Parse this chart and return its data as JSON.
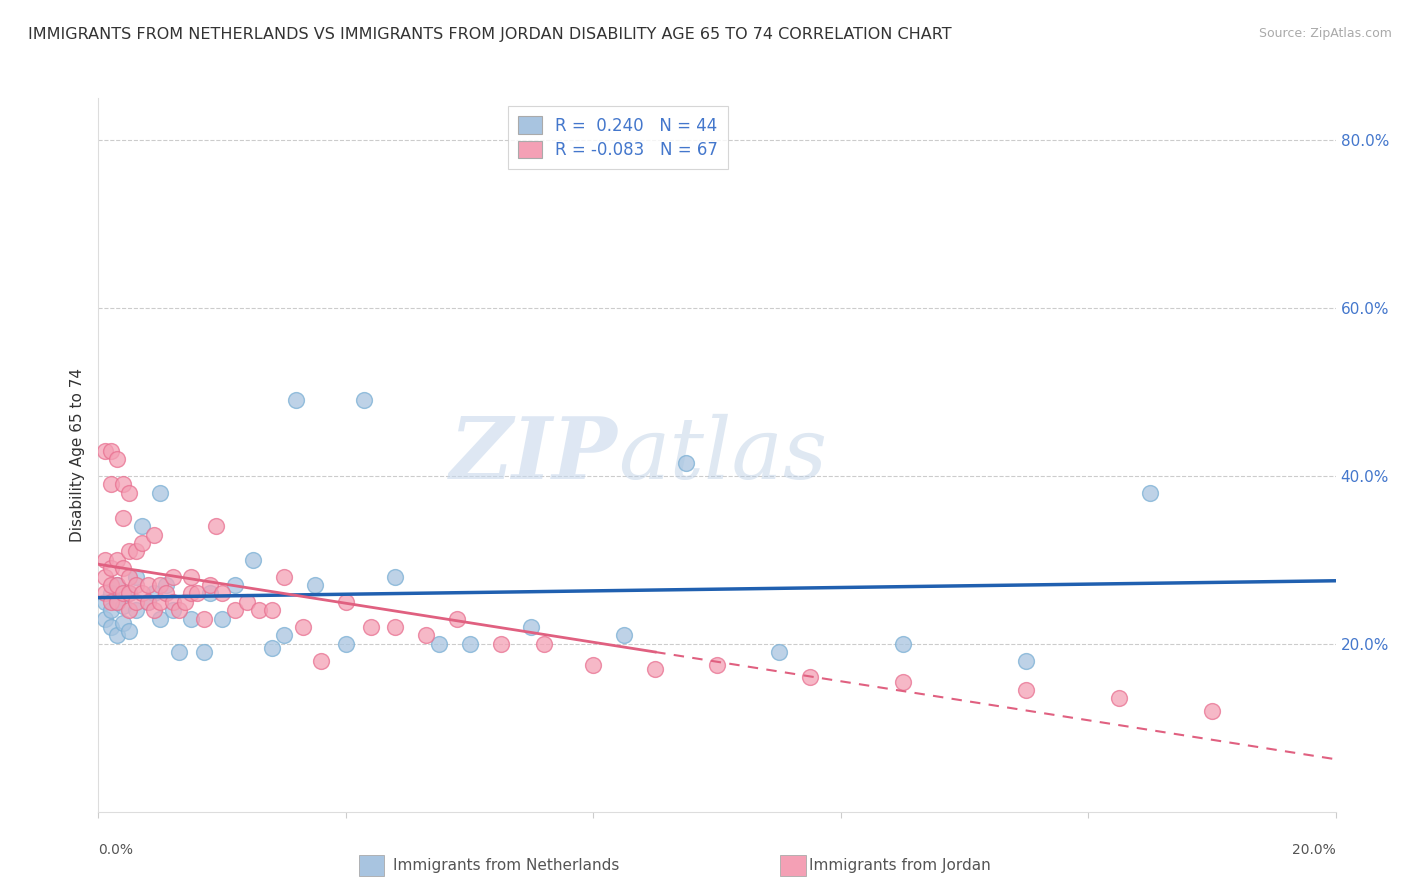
{
  "title": "IMMIGRANTS FROM NETHERLANDS VS IMMIGRANTS FROM JORDAN DISABILITY AGE 65 TO 74 CORRELATION CHART",
  "source": "Source: ZipAtlas.com",
  "ylabel": "Disability Age 65 to 74",
  "xmin": 0.0,
  "xmax": 0.2,
  "ymin": 0.0,
  "ymax": 0.85,
  "netherlands_color": "#a8c4e0",
  "netherlands_edge": "#7aafd4",
  "jordan_color": "#f4a0b5",
  "jordan_edge": "#e87090",
  "nl_line_color": "#2060b0",
  "jo_line_color": "#e06080",
  "netherlands_R": 0.24,
  "netherlands_N": 44,
  "jordan_R": -0.083,
  "jordan_N": 67,
  "legend_label_netherlands": "Immigrants from Netherlands",
  "legend_label_jordan": "Immigrants from Jordan",
  "watermark_zip": "ZIP",
  "watermark_atlas": "atlas",
  "ytick_vals": [
    0.2,
    0.4,
    0.6,
    0.8
  ],
  "ytick_labels": [
    "20.0%",
    "40.0%",
    "60.0%",
    "80.0%"
  ],
  "netherlands_x": [
    0.001,
    0.001,
    0.002,
    0.002,
    0.002,
    0.003,
    0.003,
    0.003,
    0.004,
    0.004,
    0.005,
    0.005,
    0.006,
    0.006,
    0.007,
    0.008,
    0.009,
    0.01,
    0.01,
    0.011,
    0.012,
    0.013,
    0.015,
    0.017,
    0.018,
    0.02,
    0.022,
    0.025,
    0.028,
    0.03,
    0.032,
    0.035,
    0.04,
    0.043,
    0.048,
    0.055,
    0.06,
    0.07,
    0.085,
    0.095,
    0.11,
    0.13,
    0.15,
    0.17
  ],
  "netherlands_y": [
    0.23,
    0.25,
    0.22,
    0.24,
    0.26,
    0.21,
    0.25,
    0.27,
    0.225,
    0.245,
    0.215,
    0.26,
    0.24,
    0.28,
    0.34,
    0.25,
    0.26,
    0.38,
    0.23,
    0.27,
    0.24,
    0.19,
    0.23,
    0.19,
    0.26,
    0.23,
    0.27,
    0.3,
    0.195,
    0.21,
    0.49,
    0.27,
    0.2,
    0.49,
    0.28,
    0.2,
    0.2,
    0.22,
    0.21,
    0.415,
    0.19,
    0.2,
    0.18,
    0.38
  ],
  "jordan_x": [
    0.001,
    0.001,
    0.001,
    0.001,
    0.002,
    0.002,
    0.002,
    0.002,
    0.002,
    0.003,
    0.003,
    0.003,
    0.003,
    0.004,
    0.004,
    0.004,
    0.004,
    0.005,
    0.005,
    0.005,
    0.005,
    0.005,
    0.006,
    0.006,
    0.006,
    0.007,
    0.007,
    0.008,
    0.008,
    0.009,
    0.009,
    0.01,
    0.01,
    0.011,
    0.012,
    0.012,
    0.013,
    0.014,
    0.015,
    0.015,
    0.016,
    0.017,
    0.018,
    0.019,
    0.02,
    0.022,
    0.024,
    0.026,
    0.028,
    0.03,
    0.033,
    0.036,
    0.04,
    0.044,
    0.048,
    0.053,
    0.058,
    0.065,
    0.072,
    0.08,
    0.09,
    0.1,
    0.115,
    0.13,
    0.15,
    0.165,
    0.18
  ],
  "jordan_y": [
    0.26,
    0.28,
    0.3,
    0.43,
    0.25,
    0.27,
    0.29,
    0.39,
    0.43,
    0.25,
    0.27,
    0.3,
    0.42,
    0.26,
    0.29,
    0.35,
    0.39,
    0.24,
    0.26,
    0.28,
    0.31,
    0.38,
    0.25,
    0.27,
    0.31,
    0.26,
    0.32,
    0.25,
    0.27,
    0.24,
    0.33,
    0.25,
    0.27,
    0.26,
    0.25,
    0.28,
    0.24,
    0.25,
    0.26,
    0.28,
    0.26,
    0.23,
    0.27,
    0.34,
    0.26,
    0.24,
    0.25,
    0.24,
    0.24,
    0.28,
    0.22,
    0.18,
    0.25,
    0.22,
    0.22,
    0.21,
    0.23,
    0.2,
    0.2,
    0.175,
    0.17,
    0.175,
    0.16,
    0.155,
    0.145,
    0.135,
    0.12
  ]
}
